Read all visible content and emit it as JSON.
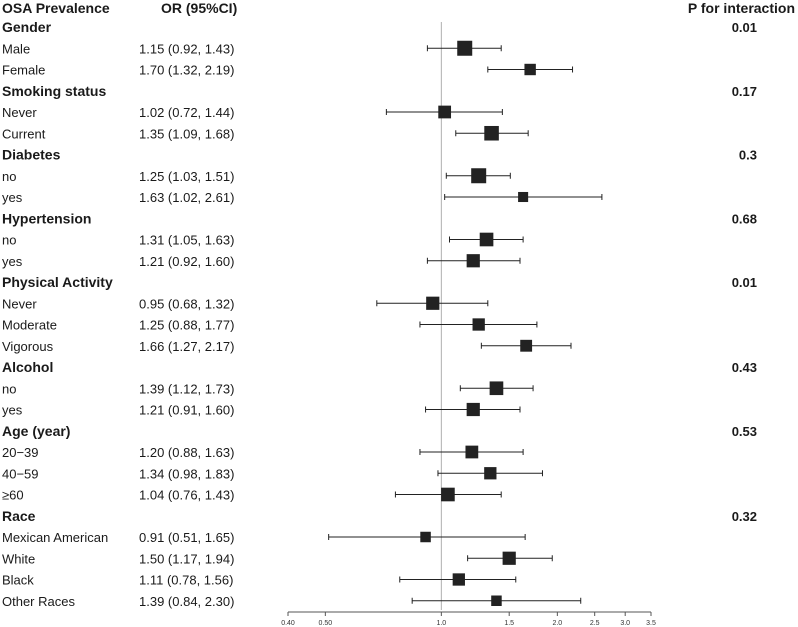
{
  "chart_data": {
    "type": "forest",
    "headers": {
      "label": "OSA Prevalence",
      "or": "OR (95%CI)",
      "p": "P for interaction"
    },
    "x_scale": "log",
    "xlim": [
      0.4,
      3.5
    ],
    "reference_line": 1.0,
    "x_ticks": [
      "0.40",
      "0.50",
      "1.0",
      "1.5",
      "2.0",
      "2.5",
      "3.0",
      "3.5"
    ],
    "x_tick_values": [
      0.4,
      0.5,
      1.0,
      1.5,
      2.0,
      2.5,
      3.0,
      3.5
    ],
    "groups": [
      {
        "name": "Gender",
        "p": "0.01",
        "rows": [
          {
            "label": "Male",
            "text": "1.15 (0.92, 1.43)",
            "or": 1.15,
            "lo": 0.92,
            "hi": 1.43,
            "weight": 1.0
          },
          {
            "label": "Female",
            "text": "1.70 (1.32, 2.19)",
            "or": 1.7,
            "lo": 1.32,
            "hi": 2.19,
            "weight": 0.6
          }
        ]
      },
      {
        "name": "Smoking status",
        "p": "0.17",
        "rows": [
          {
            "label": "Never",
            "text": "1.02 (0.72, 1.44)",
            "or": 1.02,
            "lo": 0.72,
            "hi": 1.44,
            "weight": 0.75
          },
          {
            "label": "Current",
            "text": "1.35 (1.09, 1.68)",
            "or": 1.35,
            "lo": 1.09,
            "hi": 1.68,
            "weight": 0.95
          }
        ]
      },
      {
        "name": "Diabetes",
        "p": "0.3",
        "rows": [
          {
            "label": "no",
            "text": "1.25 (1.03, 1.51)",
            "or": 1.25,
            "lo": 1.03,
            "hi": 1.51,
            "weight": 1.0
          },
          {
            "label": "yes",
            "text": "1.63 (1.02, 2.61)",
            "or": 1.63,
            "lo": 1.02,
            "hi": 2.61,
            "weight": 0.45
          }
        ]
      },
      {
        "name": "Hypertension",
        "p": "0.68",
        "rows": [
          {
            "label": "no",
            "text": "1.31 (1.05, 1.63)",
            "or": 1.31,
            "lo": 1.05,
            "hi": 1.63,
            "weight": 0.85
          },
          {
            "label": "yes",
            "text": "1.21 (0.92, 1.60)",
            "or": 1.21,
            "lo": 0.92,
            "hi": 1.6,
            "weight": 0.8
          }
        ]
      },
      {
        "name": "Physical Activity",
        "p": "0.01",
        "rows": [
          {
            "label": "Never",
            "text": "0.95 (0.68, 1.32)",
            "or": 0.95,
            "lo": 0.68,
            "hi": 1.32,
            "weight": 0.8
          },
          {
            "label": "Moderate",
            "text": "1.25 (0.88, 1.77)",
            "or": 1.25,
            "lo": 0.88,
            "hi": 1.77,
            "weight": 0.7
          },
          {
            "label": "Vigorous",
            "text": "1.66 (1.27, 2.17)",
            "or": 1.66,
            "lo": 1.27,
            "hi": 2.17,
            "weight": 0.65
          }
        ]
      },
      {
        "name": "Alcohol",
        "p": "0.43",
        "rows": [
          {
            "label": "no",
            "text": "1.39 (1.12, 1.73)",
            "or": 1.39,
            "lo": 1.12,
            "hi": 1.73,
            "weight": 0.85
          },
          {
            "label": "yes",
            "text": "1.21 (0.91, 1.60)",
            "or": 1.21,
            "lo": 0.91,
            "hi": 1.6,
            "weight": 0.8
          }
        ]
      },
      {
        "name": "Age (year)",
        "p": "0.53",
        "rows": [
          {
            "label": "20−39",
            "text": "1.20 (0.88, 1.63)",
            "or": 1.2,
            "lo": 0.88,
            "hi": 1.63,
            "weight": 0.75
          },
          {
            "label": "40−59",
            "text": "1.34 (0.98, 1.83)",
            "or": 1.34,
            "lo": 0.98,
            "hi": 1.83,
            "weight": 0.7
          },
          {
            "label": "≥60",
            "text": "1.04 (0.76, 1.43)",
            "or": 1.04,
            "lo": 0.76,
            "hi": 1.43,
            "weight": 0.85
          }
        ]
      },
      {
        "name": "Race",
        "p": "0.32",
        "rows": [
          {
            "label": "Mexican American",
            "text": "0.91 (0.51, 1.65)",
            "or": 0.91,
            "lo": 0.51,
            "hi": 1.65,
            "weight": 0.5
          },
          {
            "label": "White",
            "text": "1.50 (1.17, 1.94)",
            "or": 1.5,
            "lo": 1.17,
            "hi": 1.94,
            "weight": 0.8
          },
          {
            "label": "Black",
            "text": "1.11 (0.78, 1.56)",
            "or": 1.11,
            "lo": 0.78,
            "hi": 1.56,
            "weight": 0.7
          },
          {
            "label": "Other Races",
            "text": "1.39 (0.84, 2.30)",
            "or": 1.39,
            "lo": 0.84,
            "hi": 2.3,
            "weight": 0.5
          }
        ]
      }
    ],
    "colors": {
      "marker": "#222222",
      "ci": "#222222",
      "reference": "#b0b0b0",
      "axis": "#555555"
    }
  }
}
